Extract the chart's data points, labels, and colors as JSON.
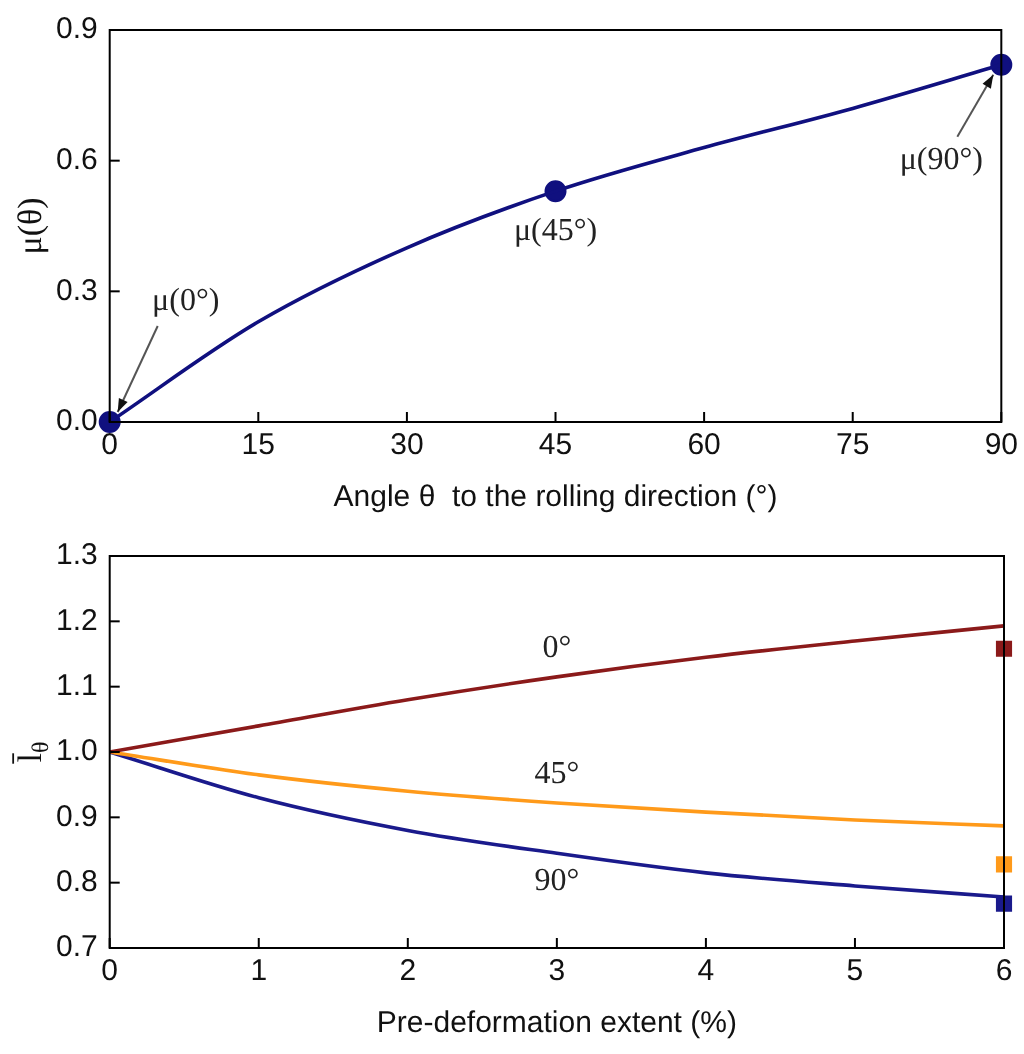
{
  "chart_data": [
    {
      "type": "line",
      "xlabel": "Angle θ  to the rolling direction (°)",
      "ylabel": "μ(θ)",
      "x": [
        0,
        15,
        30,
        45,
        60,
        75,
        90
      ],
      "xlim": [
        0,
        90
      ],
      "xticks": [
        0,
        15,
        30,
        45,
        60,
        75,
        90
      ],
      "ylim": [
        0,
        0.9
      ],
      "yticks": [
        {
          "value": 0,
          "label": "0.0"
        },
        0.3,
        0.6,
        0.9
      ],
      "grid": false,
      "legend": false,
      "marker": "none",
      "line_style": "solid",
      "series": [
        {
          "color": "#10107f",
          "values": [
            0,
            0.23,
            0.4,
            0.53,
            0.63,
            0.72,
            0.82
          ]
        },
        {
          "type": "scatter",
          "marker": "circle",
          "color": "#10107f",
          "x": [
            0,
            45,
            90
          ],
          "values": [
            0,
            0.53,
            0.82
          ]
        }
      ],
      "annotations": [
        {
          "text": "μ(0°)",
          "x": 0,
          "y": 0
        },
        {
          "text": "μ(45°)",
          "x": 45,
          "y": 0.53
        },
        {
          "text": "μ(90°)",
          "x": 90,
          "y": 0.82
        }
      ]
    },
    {
      "type": "line",
      "xlabel": "Pre-deformation extent (%)",
      "ylabel": "l̄$_{θ}$",
      "x": [
        0,
        1,
        2,
        3,
        4,
        5,
        6
      ],
      "xlim": [
        0,
        6
      ],
      "xticks": [
        0,
        1,
        2,
        3,
        4,
        5,
        6
      ],
      "ylim": [
        0.7,
        1.3
      ],
      "yticks": [
        0.7,
        0.8,
        0.9,
        {
          "value": 1,
          "label": "1.0"
        },
        1.1,
        1.2,
        1.3
      ],
      "grid": false,
      "legend": false,
      "marker": "none",
      "line_style": "solid",
      "series": [
        {
          "name": "0°",
          "color": "#8b1a1a",
          "values": [
            1,
            1.04,
            1.08,
            1.115,
            1.145,
            1.17,
            1.193
          ]
        },
        {
          "name": "45°",
          "color": "#ff9a1a",
          "values": [
            1,
            0.965,
            0.94,
            0.922,
            0.908,
            0.896,
            0.887
          ]
        },
        {
          "name": "90°",
          "color": "#1a1a8c",
          "values": [
            1,
            0.93,
            0.88,
            0.845,
            0.815,
            0.795,
            0.778
          ]
        },
        {
          "type": "scatter",
          "marker": "square",
          "color": "#8b1a1a",
          "x": [
            6
          ],
          "values": [
            1.158
          ]
        },
        {
          "type": "scatter",
          "marker": "square",
          "color": "#ff9a1a",
          "x": [
            6
          ],
          "values": [
            0.828
          ]
        },
        {
          "type": "scatter",
          "marker": "square",
          "color": "#1a1a8c",
          "x": [
            6
          ],
          "values": [
            0.768
          ]
        }
      ]
    }
  ]
}
